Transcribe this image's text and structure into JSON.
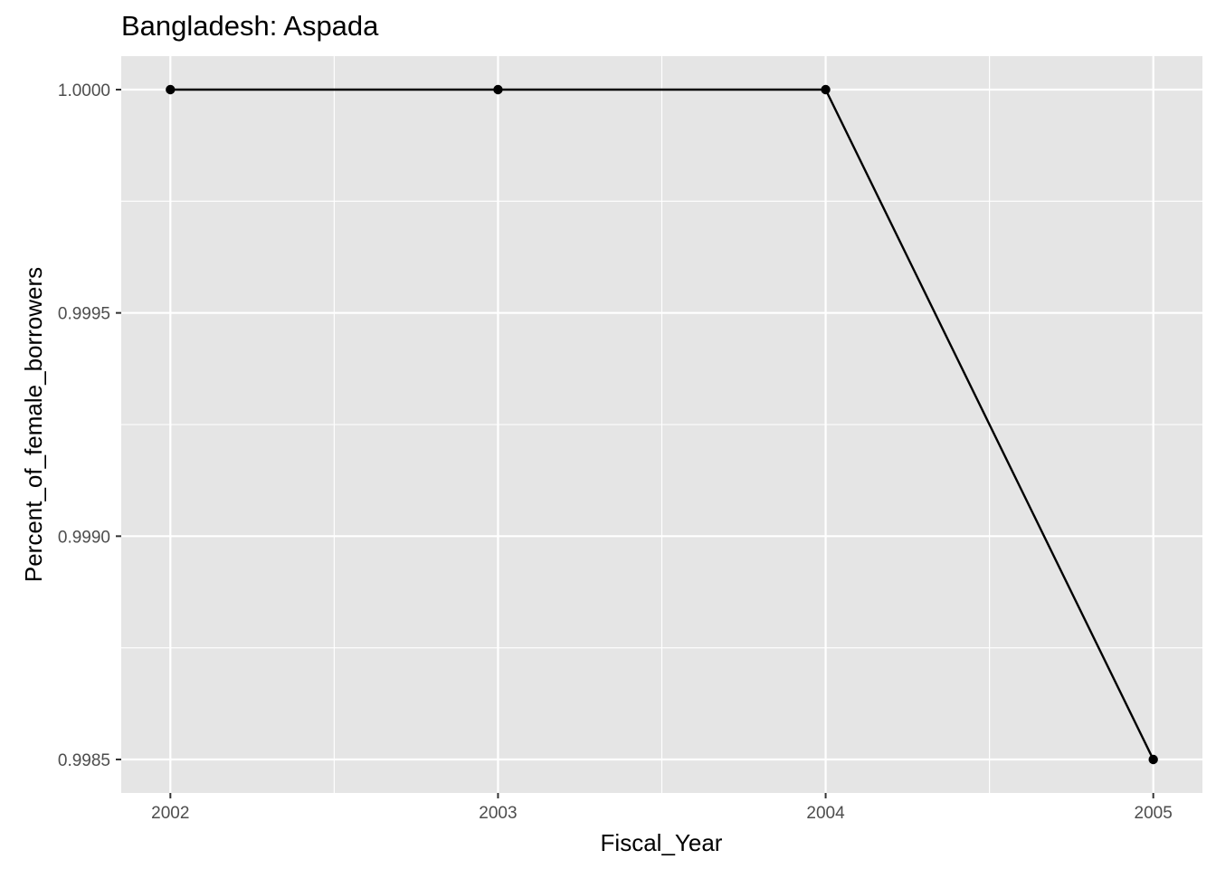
{
  "chart_data": {
    "type": "line",
    "title": "Bangladesh:  Aspada",
    "xlabel": "Fiscal_Year",
    "ylabel": "Percent_of_female_borrowers",
    "x": [
      2002,
      2003,
      2004,
      2005
    ],
    "series": [
      {
        "values": [
          1.0,
          1.0,
          1.0,
          0.9985
        ],
        "color": "#000000"
      }
    ],
    "x_ticks": [
      "2002",
      "2003",
      "2004",
      "2005"
    ],
    "y_ticks": [
      "0.9985",
      "0.9990",
      "0.9995",
      "1.0000"
    ],
    "xlim": [
      2001.85,
      2005.15
    ],
    "ylim": [
      0.998425,
      1.000075
    ],
    "grid": true,
    "panel_color": "#e5e5e5",
    "grid_color": "#ffffff"
  }
}
